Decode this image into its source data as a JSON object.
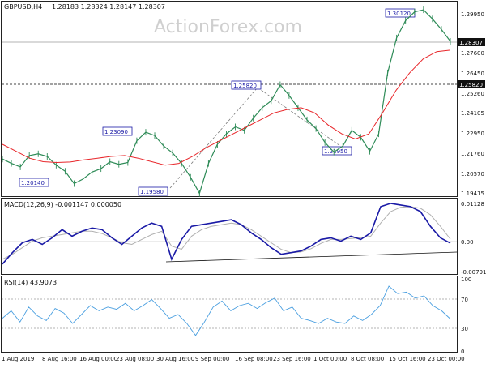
{
  "header": {
    "symbol": "GBPUSD,H4",
    "ohlc": "1.28183 1.28324 1.28147 1.28307"
  },
  "watermark": "ActionForex.com",
  "price_panel": {
    "ticks": [
      "1.29950",
      "1.27600",
      "1.26450",
      "1.25260",
      "1.24105",
      "1.22950",
      "1.21760",
      "1.20570",
      "1.19415"
    ],
    "current_price": "1.28307",
    "level_price": "1.25820",
    "annotations": [
      "1.30120",
      "1.25820",
      "1.23090",
      "1.21950",
      "1.20140",
      "1.19580"
    ]
  },
  "macd_panel": {
    "label": "MACD(12,26,9) -0.001147 0.000050",
    "ticks": [
      "0.01128",
      "0.00",
      "-0.007911"
    ]
  },
  "rsi_panel": {
    "label": "RSI(14) 43.9073",
    "ticks": [
      "100",
      "70",
      "30",
      "0"
    ]
  },
  "time_axis": [
    "1 Aug 2019",
    "8 Aug 16:00",
    "16 Aug 00:00",
    "23 Aug 08:00",
    "30 Aug 16:00",
    "9 Sep 00:00",
    "16 Sep 08:00",
    "23 Sep 16:00",
    "1 Oct 00:00",
    "8 Oct 08:00",
    "15 Oct 16:00",
    "23 Oct 00:00"
  ],
  "colors": {
    "candle": "#2e8b57",
    "ma": "#e8262a",
    "macd": "#1a1aa6",
    "signal": "#b0b0b0",
    "rsi": "#4a9fe0",
    "box": "#1a1aa6",
    "dash": "#7a7a7a"
  },
  "chart_data": [
    {
      "type": "line",
      "title": "GBPUSD,H4",
      "series": [
        {
          "values": [
            1.2155,
            1.213,
            1.211,
            1.2175,
            1.2185,
            1.217,
            1.212,
            1.2085,
            1.2014,
            1.204,
            1.208,
            1.21,
            1.214,
            1.2125,
            1.2135,
            1.226,
            1.2309,
            1.229,
            1.223,
            1.219,
            1.213,
            1.205,
            1.1958,
            1.213,
            1.224,
            1.23,
            1.234,
            1.232,
            1.239,
            1.245,
            1.249,
            1.2582,
            1.252,
            1.245,
            1.238,
            1.233,
            1.225,
            1.2195,
            1.223,
            1.232,
            1.228,
            1.22,
            1.23,
            1.265,
            1.285,
            1.295,
            1.3,
            1.3012,
            1.296,
            1.29,
            1.2831
          ]
        },
        {
          "name": "MA",
          "values": [
            1.224,
            1.22,
            1.216,
            1.214,
            1.2135,
            1.2138,
            1.215,
            1.216,
            1.217,
            1.2175,
            1.216,
            1.214,
            1.212,
            1.213,
            1.217,
            1.222,
            1.226,
            1.23,
            1.234,
            1.238,
            1.242,
            1.244,
            1.245,
            1.242,
            1.235,
            1.23,
            1.227,
            1.23,
            1.242,
            1.255,
            1.265,
            1.273,
            1.2772,
            1.278
          ]
        }
      ],
      "ylim": [
        1.1942,
        1.3059
      ]
    },
    {
      "type": "line",
      "title": "MACD(12,26,9)",
      "series": [
        {
          "name": "MACD",
          "values": [
            -0.0075,
            -0.004,
            -0.001,
            0.0,
            -0.0015,
            0.0005,
            0.003,
            0.001,
            0.0025,
            0.0035,
            0.003,
            0.0005,
            -0.0015,
            0.001,
            0.0035,
            0.005,
            0.004,
            -0.006,
            0.0,
            0.004,
            0.0045,
            0.005,
            0.0055,
            0.006,
            0.0045,
            0.002,
            0.0,
            -0.0025,
            -0.0045,
            -0.004,
            -0.0035,
            -0.002,
            0.0,
            0.0005,
            -0.0005,
            0.001,
            0.0,
            0.002,
            0.01,
            0.011,
            0.0105,
            0.01,
            0.0085,
            0.004,
            0.0005,
            -0.0011
          ]
        },
        {
          "name": "Signal",
          "values": [
            -0.006,
            -0.0045,
            -0.0025,
            -0.0005,
            0.0005,
            0.001,
            0.0015,
            0.002,
            0.0025,
            0.0025,
            0.0018,
            0.0005,
            -0.001,
            -0.0015,
            0.0,
            0.0015,
            0.0025,
            -0.002,
            -0.003,
            0.001,
            0.003,
            0.004,
            0.0045,
            0.005,
            0.0045,
            0.003,
            0.001,
            -0.001,
            -0.003,
            -0.004,
            -0.0038,
            -0.0028,
            -0.0012,
            0.0,
            0.0,
            0.0003,
            0.0005,
            0.001,
            0.005,
            0.0085,
            0.0098,
            0.01,
            0.0095,
            0.0075,
            0.004,
            0.0001
          ]
        }
      ],
      "ylim": [
        -0.0105,
        0.0122
      ]
    },
    {
      "type": "line",
      "title": "RSI(14)",
      "series": [
        {
          "name": "RSI",
          "values": [
            45,
            55,
            40,
            60,
            48,
            42,
            58,
            52,
            38,
            50,
            62,
            55,
            60,
            57,
            65,
            55,
            62,
            70,
            58,
            45,
            50,
            38,
            22,
            40,
            60,
            68,
            55,
            62,
            65,
            58,
            66,
            72,
            55,
            60,
            45,
            42,
            38,
            45,
            40,
            38,
            48,
            42,
            50,
            62,
            88,
            78,
            80,
            72,
            75,
            62,
            55,
            44
          ]
        }
      ],
      "ylim": [
        0,
        100
      ]
    }
  ]
}
